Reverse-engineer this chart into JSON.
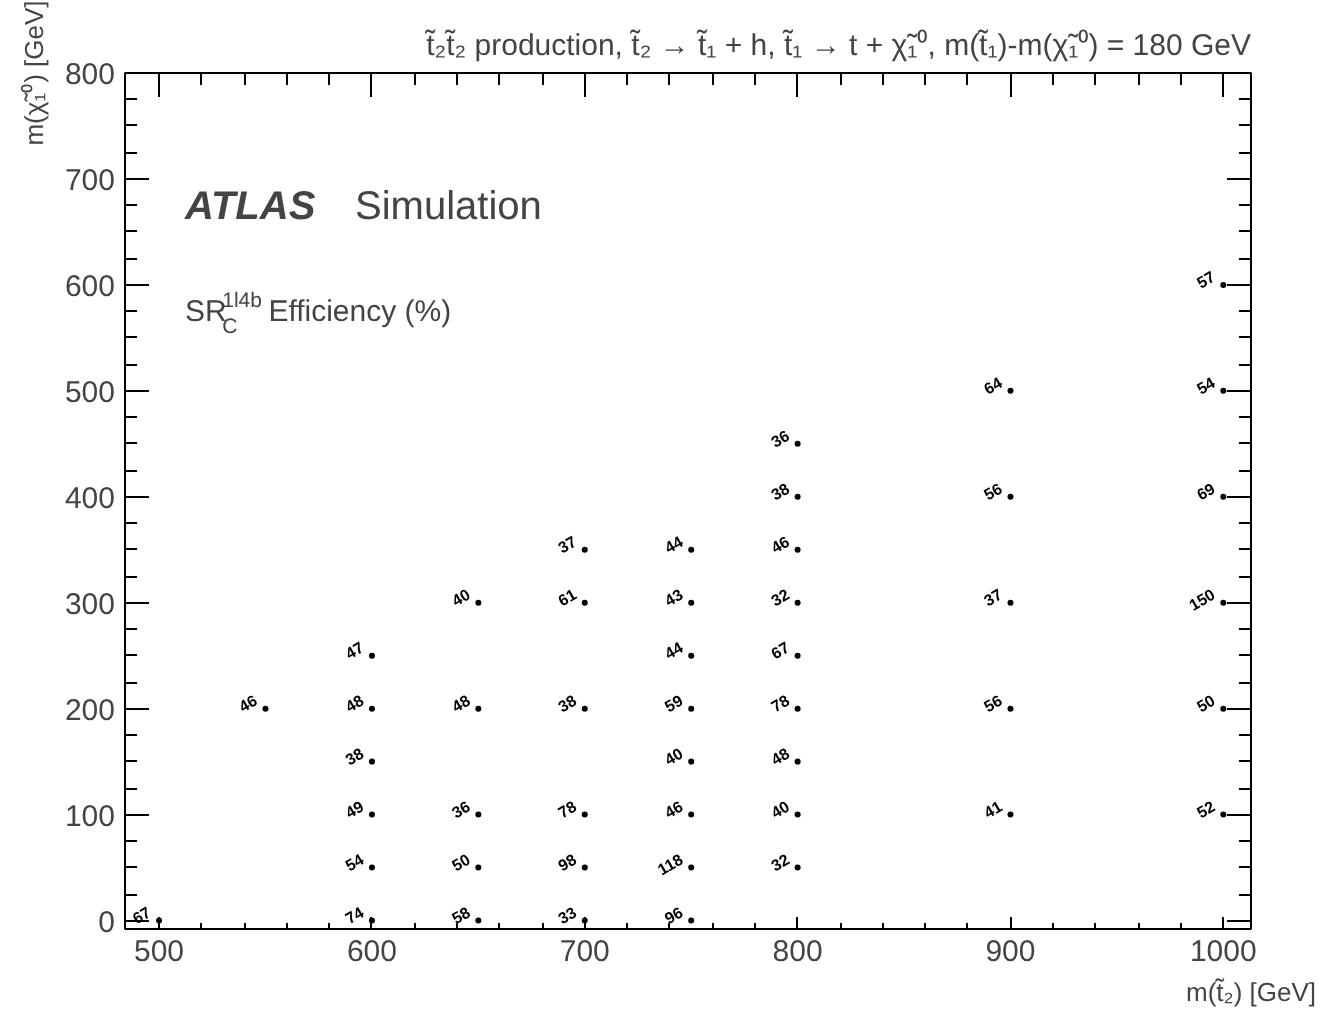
{
  "chart_data": {
    "type": "scatter",
    "title": "t̃₂t̃₂ production, t̃₂ → t̃₁ + h, t̃₁ → t + χ̃₁⁰, m(t̃₁)-m(χ̃₁⁰) = 180 GeV",
    "xlabel": "m(t̃₂) [GeV]",
    "ylabel": "m(χ̃₁⁰) [GeV]",
    "annotations": [
      "ATLAS",
      "Simulation",
      "SR$^{1l4b}$$_{C}$ Efficiency (%)",
      {
        "text": "67",
        "x": 500,
        "y": 0
      },
      {
        "text": "74",
        "x": 600,
        "y": 0
      },
      {
        "text": "58",
        "x": 650,
        "y": 0
      },
      {
        "text": "33",
        "x": 700,
        "y": 0
      },
      {
        "text": "96",
        "x": 750,
        "y": 0
      },
      {
        "text": "54",
        "x": 600,
        "y": 50
      },
      {
        "text": "50",
        "x": 650,
        "y": 50
      },
      {
        "text": "98",
        "x": 700,
        "y": 50
      },
      {
        "text": "118",
        "x": 750,
        "y": 50
      },
      {
        "text": "32",
        "x": 800,
        "y": 50
      },
      {
        "text": "49",
        "x": 600,
        "y": 100
      },
      {
        "text": "36",
        "x": 650,
        "y": 100
      },
      {
        "text": "78",
        "x": 700,
        "y": 100
      },
      {
        "text": "46",
        "x": 750,
        "y": 100
      },
      {
        "text": "40",
        "x": 800,
        "y": 100
      },
      {
        "text": "41",
        "x": 900,
        "y": 100
      },
      {
        "text": "52",
        "x": 1000,
        "y": 100
      },
      {
        "text": "38",
        "x": 600,
        "y": 150
      },
      {
        "text": "40",
        "x": 750,
        "y": 150
      },
      {
        "text": "48",
        "x": 800,
        "y": 150
      },
      {
        "text": "46",
        "x": 550,
        "y": 200
      },
      {
        "text": "48",
        "x": 600,
        "y": 200
      },
      {
        "text": "48",
        "x": 650,
        "y": 200
      },
      {
        "text": "38",
        "x": 700,
        "y": 200
      },
      {
        "text": "59",
        "x": 750,
        "y": 200
      },
      {
        "text": "78",
        "x": 800,
        "y": 200
      },
      {
        "text": "56",
        "x": 900,
        "y": 200
      },
      {
        "text": "50",
        "x": 1000,
        "y": 200
      },
      {
        "text": "47",
        "x": 600,
        "y": 250
      },
      {
        "text": "44",
        "x": 750,
        "y": 250
      },
      {
        "text": "67",
        "x": 800,
        "y": 250
      },
      {
        "text": "40",
        "x": 650,
        "y": 300
      },
      {
        "text": "61",
        "x": 700,
        "y": 300
      },
      {
        "text": "43",
        "x": 750,
        "y": 300
      },
      {
        "text": "32",
        "x": 800,
        "y": 300
      },
      {
        "text": "37",
        "x": 900,
        "y": 300
      },
      {
        "text": "150",
        "x": 1000,
        "y": 300
      },
      {
        "text": "37",
        "x": 700,
        "y": 350
      },
      {
        "text": "44",
        "x": 750,
        "y": 350
      },
      {
        "text": "46",
        "x": 800,
        "y": 350
      },
      {
        "text": "38",
        "x": 800,
        "y": 400
      },
      {
        "text": "56",
        "x": 900,
        "y": 400
      },
      {
        "text": "69",
        "x": 1000,
        "y": 400
      },
      {
        "text": "36",
        "x": 800,
        "y": 450
      },
      {
        "text": "64",
        "x": 900,
        "y": 500
      },
      {
        "text": "54",
        "x": 1000,
        "y": 500
      },
      {
        "text": "57",
        "x": 1000,
        "y": 600
      }
    ],
    "x": [
      500,
      600,
      650,
      700,
      750,
      600,
      650,
      700,
      750,
      800,
      600,
      650,
      700,
      750,
      800,
      900,
      1000,
      600,
      750,
      800,
      550,
      600,
      650,
      700,
      750,
      800,
      900,
      1000,
      600,
      750,
      800,
      650,
      700,
      750,
      800,
      900,
      1000,
      700,
      750,
      800,
      800,
      900,
      1000,
      800,
      900,
      1000,
      1000
    ],
    "values": [
      0,
      0,
      0,
      0,
      0,
      50,
      50,
      50,
      50,
      50,
      100,
      100,
      100,
      100,
      100,
      100,
      100,
      150,
      150,
      150,
      200,
      200,
      200,
      200,
      200,
      200,
      200,
      200,
      250,
      250,
      250,
      300,
      300,
      300,
      300,
      300,
      300,
      350,
      350,
      350,
      400,
      400,
      400,
      450,
      500,
      500,
      600
    ],
    "color": "#000000",
    "marker": "circle",
    "xlim": [
      484,
      1013
    ],
    "ylim": [
      -8,
      800
    ],
    "xticks": [
      500,
      600,
      700,
      800,
      900,
      1000
    ],
    "yticks": [
      0,
      100,
      200,
      300,
      400,
      500,
      600,
      700,
      800
    ],
    "grid": false
  }
}
